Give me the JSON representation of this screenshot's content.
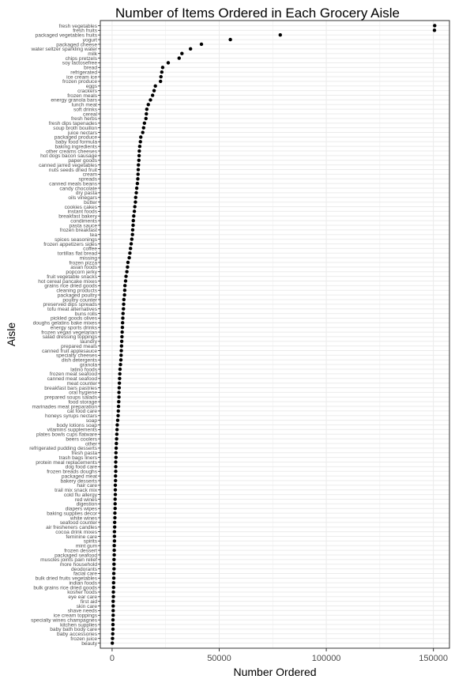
{
  "chart_data": {
    "type": "scatter",
    "title": "Number of Items Ordered in Each Grocery Aisle",
    "xlabel": "Number Ordered",
    "ylabel": "Aisle",
    "xlim": [
      -5500,
      157500
    ],
    "x_ticks": [
      0,
      50000,
      100000,
      150000
    ],
    "x_tick_labels": [
      "0",
      "50000",
      "100000",
      "150000"
    ],
    "grid": true,
    "legend": "none",
    "point_color": "#000000",
    "panel_border_color": "#333333",
    "grid_color": "#ebebeb",
    "categories": [
      "fresh vegetables",
      "fresh fruits",
      "packaged vegetables fruits",
      "yogurt",
      "packaged cheese",
      "water seltzer sparkling water",
      "milk",
      "chips pretzels",
      "soy lactosefree",
      "bread",
      "refrigerated",
      "ice cream ice",
      "frozen produce",
      "eggs",
      "crackers",
      "frozen meals",
      "energy granola bars",
      "lunch meat",
      "soft drinks",
      "cereal",
      "fresh herbs",
      "fresh dips tapenades",
      "soup broth bouillon",
      "juice nectars",
      "packaged produce",
      "baby food formula",
      "baking ingredients",
      "other creams cheeses",
      "hot dogs bacon sausage",
      "paper goods",
      "canned jarred vegetables",
      "nuts seeds dried fruit",
      "cream",
      "spreads",
      "canned meals beans",
      "candy chocolate",
      "dry pasta",
      "oils vinegars",
      "butter",
      "cookies cakes",
      "instant foods",
      "breakfast bakery",
      "condiments",
      "pasta sauce",
      "frozen breakfast",
      "tea",
      "spices seasonings",
      "frozen appetizers sides",
      "coffee",
      "tortillas flat bread",
      "missing",
      "frozen pizza",
      "asian foods",
      "popcorn jerky",
      "fruit vegetable snacks",
      "hot cereal pancake mixes",
      "grains rice dried goods",
      "cleaning products",
      "packaged poultry",
      "poultry counter",
      "preserved dips spreads",
      "tofu meat alternatives",
      "buns rolls",
      "pickled goods olives",
      "doughs gelatins bake mixes",
      "energy sports drinks",
      "frozen vegan vegetarian",
      "salad dressing toppings",
      "laundry",
      "prepared meals",
      "canned fruit applesauce",
      "specialty cheeses",
      "dish detergents",
      "granola",
      "latino foods",
      "frozen meat seafood",
      "canned meat seafood",
      "meat counter",
      "breakfast bars pastries",
      "oral hygiene",
      "prepared soups salads",
      "food storage",
      "marinades meat preparation",
      "cat food care",
      "honeys syrups nectars",
      "soap",
      "body lotions soap",
      "vitamins supplements",
      "plates bowls cups flatware",
      "beers coolers",
      "other",
      "refrigerated pudding desserts",
      "fresh pasta",
      "trash bags liners",
      "protein meal replacements",
      "dog food care",
      "frozen breads doughs",
      "packaged meat",
      "bakery desserts",
      "hair care",
      "trail mix snack mix",
      "cold flu allergy",
      "red wines",
      "digestion",
      "diapers wipes",
      "baking supplies decor",
      "white wines",
      "seafood counter",
      "air fresheners candles",
      "cocoa drink mixes",
      "feminine care",
      "spirits",
      "mint gum",
      "frozen dessert",
      "packaged seafood",
      "muscles joints pain relief",
      "more household",
      "deodorants",
      "facial care",
      "bulk dried fruits vegetables",
      "indian foods",
      "bulk grains rice dried goods",
      "kosher foods",
      "eye ear care",
      "first aid",
      "skin care",
      "shave needs",
      "ice cream toppings",
      "specialty wines champagnes",
      "kitchen supplies",
      "baby bath body care",
      "baby accessories",
      "frozen juice",
      "beauty"
    ],
    "values": [
      150600,
      150500,
      78500,
      55200,
      41700,
      36600,
      32600,
      31300,
      26200,
      23600,
      23200,
      22800,
      22600,
      20200,
      19600,
      18900,
      17900,
      16900,
      16200,
      16000,
      15800,
      15100,
      14700,
      14300,
      13400,
      13200,
      12900,
      12700,
      12600,
      12500,
      12300,
      12200,
      12100,
      12000,
      11800,
      11500,
      11300,
      11000,
      10900,
      10600,
      10400,
      10100,
      9900,
      9800,
      9600,
      9500,
      9200,
      8900,
      8600,
      8300,
      8000,
      7400,
      7200,
      6900,
      6500,
      6300,
      6000,
      5900,
      5800,
      5500,
      5400,
      5300,
      5100,
      5000,
      4900,
      4800,
      4700,
      4600,
      4500,
      4400,
      4300,
      4200,
      4100,
      3900,
      3700,
      3600,
      3500,
      3400,
      3300,
      3200,
      3200,
      3100,
      3000,
      2900,
      2800,
      2600,
      2400,
      2300,
      2200,
      2100,
      2000,
      1900,
      1800,
      1800,
      1700,
      1700,
      1700,
      1600,
      1600,
      1500,
      1500,
      1500,
      1400,
      1400,
      1400,
      1300,
      1300,
      1200,
      1200,
      1100,
      1100,
      1100,
      1000,
      1000,
      1000,
      900,
      900,
      900,
      800,
      800,
      700,
      700,
      600,
      600,
      500,
      500,
      500,
      500,
      400,
      400,
      400,
      300,
      200,
      100
    ]
  }
}
